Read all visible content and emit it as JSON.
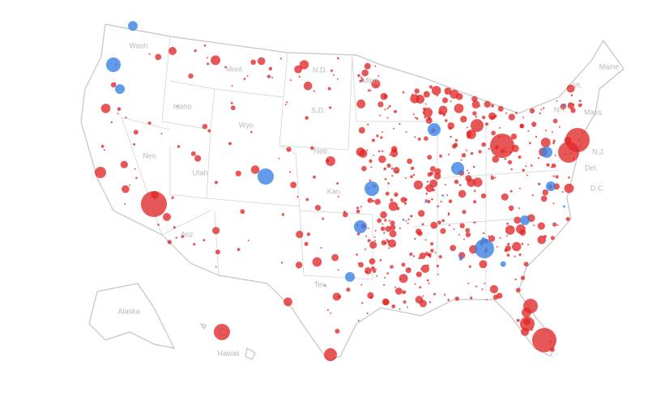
{
  "map": {
    "state_labels": [
      "Wash.",
      "Mont.",
      "N.D.",
      "Minn.",
      "Idaho",
      "Wyo.",
      "S.D.",
      "Nev.",
      "Neb.",
      "Utah",
      "Kan.",
      "Ariz.",
      "Tex.",
      "N.Y.",
      "Vt.",
      "Maine",
      "Mass.",
      "N.J.",
      "Del.",
      "D.C.",
      "Alaska",
      "Hawaii"
    ]
  }
}
